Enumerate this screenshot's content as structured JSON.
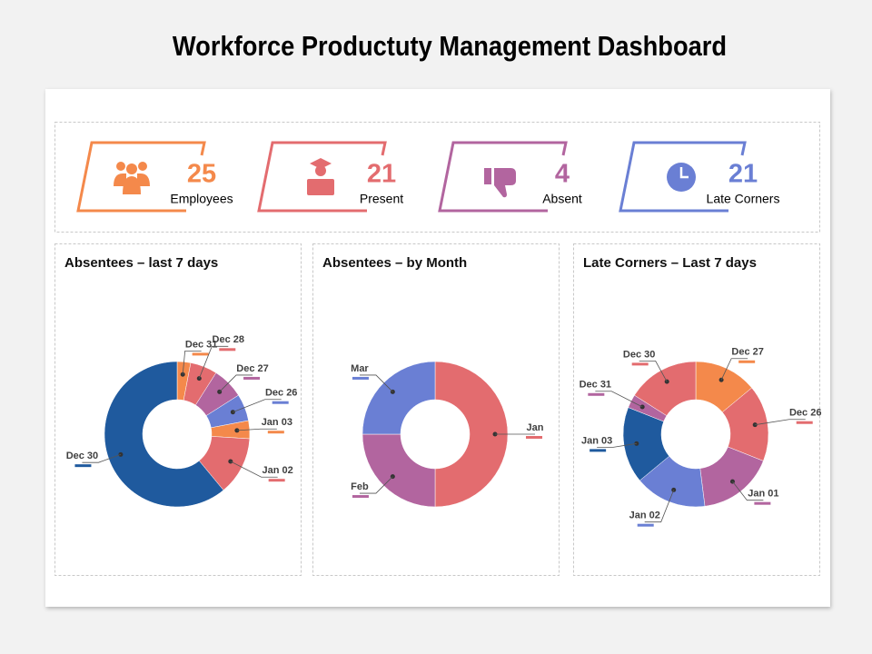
{
  "title": "Workforce Productuty Management Dashboard",
  "kpis": [
    {
      "value": 25,
      "label": "Employees"
    },
    {
      "value": 21,
      "label": "Present"
    },
    {
      "value": 4,
      "label": "Absent"
    },
    {
      "value": 21,
      "label": "Late Corners"
    }
  ],
  "chart_data": [
    {
      "type": "donut",
      "title": "Absentees – last 7 days",
      "categories": [
        "Dec 31",
        "Dec 28",
        "Dec 27",
        "Dec 26",
        "Jan 03",
        "Jan 02",
        "Dec 30"
      ],
      "values": [
        3,
        6,
        7,
        6,
        4,
        13,
        61
      ],
      "colors": [
        "#f4894b",
        "#e36c6f",
        "#b2659f",
        "#6a7fd4",
        "#f4894b",
        "#e36c6f",
        "#1f5a9e"
      ]
    },
    {
      "type": "donut",
      "title": "Absentees – by Month",
      "categories": [
        "Jan",
        "Feb",
        "Mar"
      ],
      "values": [
        50,
        25,
        25
      ],
      "colors": [
        "#e36c6f",
        "#b2659f",
        "#6a7fd4"
      ]
    },
    {
      "type": "donut",
      "title": "Late Corners – Last 7 days",
      "categories": [
        "Dec 27",
        "Dec 26",
        "Jan 01",
        "Jan 02",
        "Jan 03",
        "Dec 31",
        "Dec 30"
      ],
      "values": [
        14,
        17,
        17,
        16,
        17,
        3,
        16
      ],
      "colors": [
        "#f4894b",
        "#e36c6f",
        "#b2659f",
        "#6a7fd4",
        "#1f5a9e",
        "#b2659f",
        "#e36c6f"
      ]
    }
  ]
}
